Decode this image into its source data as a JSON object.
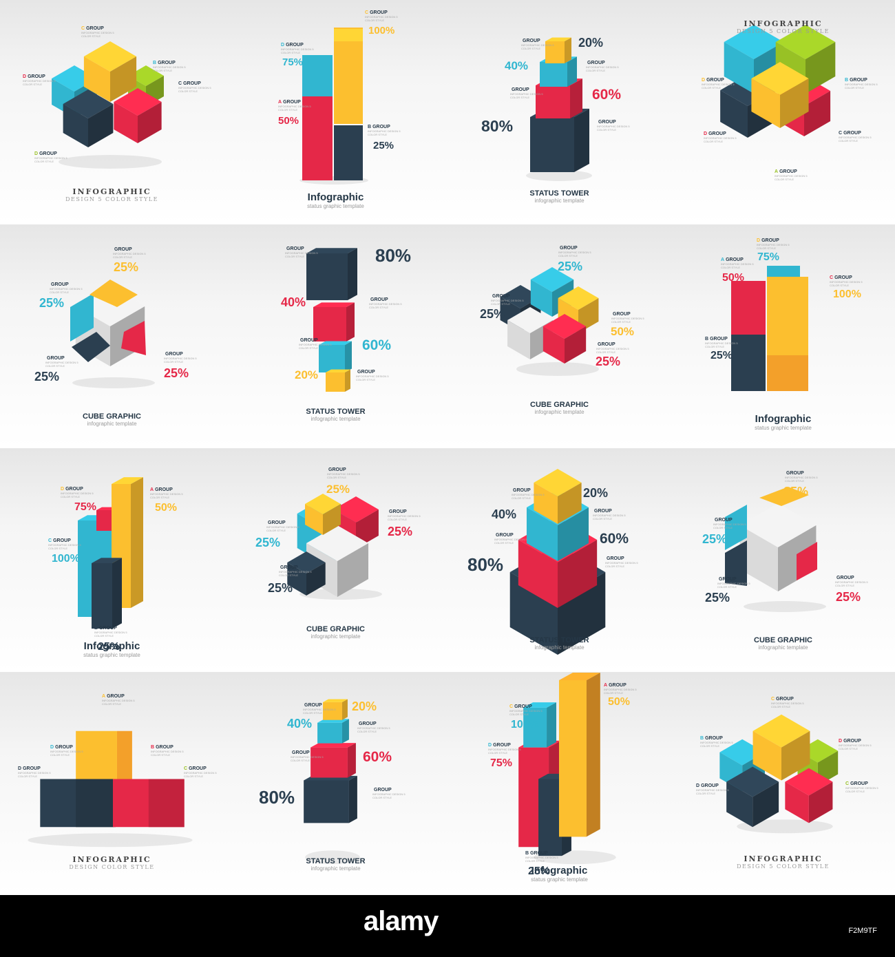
{
  "colors": {
    "navy": "#2b3f50",
    "red": "#e52848",
    "yellow": "#fcbf2f",
    "cyan": "#31b6d0",
    "green": "#98c125",
    "orange": "#f3a02a",
    "grey": "#dadada"
  },
  "desc_text": "INFOGRAPHIC DESIGN 5 COLOR STYLE",
  "footer": {
    "logo": "alamy",
    "stock_id": "",
    "image_id": "F2M9TF"
  },
  "tiles": [
    {
      "title": "INFOGRAPHIC",
      "subtitle": "DESIGN 5 COLOR STYLE",
      "labels": [
        {
          "letter": "C",
          "name": "GROUP"
        },
        {
          "letter": "B",
          "name": "GROUP"
        },
        {
          "letter": "D",
          "name": "GROUP"
        },
        {
          "letter": "C",
          "name": "GROUP"
        },
        {
          "letter": "D",
          "name": "GROUP"
        }
      ],
      "pcts": []
    },
    {
      "title": "Infographic",
      "subtitle": "status graphic template",
      "labels": [
        {
          "letter": "C",
          "name": "GROUP"
        },
        {
          "letter": "D",
          "name": "GROUP"
        },
        {
          "letter": "A",
          "name": "GROUP"
        },
        {
          "letter": "B",
          "name": "GROUP"
        }
      ],
      "pcts": [
        "100%",
        "75%",
        "50%",
        "25%"
      ]
    },
    {
      "title": "STATUS TOWER",
      "subtitle": "infographic template",
      "labels": [
        {
          "letter": "",
          "name": "GROUP"
        },
        {
          "letter": "",
          "name": "GROUP"
        },
        {
          "letter": "",
          "name": "GROUP"
        },
        {
          "letter": "",
          "name": "GROUP"
        }
      ],
      "pcts": [
        "20%",
        "40%",
        "60%",
        "80%"
      ]
    },
    {
      "title": "INFOGRAPHIC",
      "subtitle": "DESIGN 5 COLOR STYLE",
      "labels": [
        {
          "letter": "D",
          "name": "GROUP"
        },
        {
          "letter": "B",
          "name": "GROUP"
        },
        {
          "letter": "D",
          "name": "GROUP"
        },
        {
          "letter": "C",
          "name": "GROUP"
        },
        {
          "letter": "A",
          "name": "GROUP"
        }
      ],
      "pcts": []
    },
    {
      "title": "CUBE GRAPHIC",
      "subtitle": "infographic template",
      "labels": [
        {
          "letter": "",
          "name": "GROUP"
        },
        {
          "letter": "",
          "name": "GROUP"
        },
        {
          "letter": "",
          "name": "GROUP"
        },
        {
          "letter": "",
          "name": "GROUP"
        }
      ],
      "pcts": [
        "25%",
        "25%",
        "25%",
        "25%"
      ]
    },
    {
      "title": "STATUS TOWER",
      "subtitle": "infographic template",
      "labels": [
        {
          "letter": "",
          "name": "GROUP"
        },
        {
          "letter": "",
          "name": "GROUP"
        },
        {
          "letter": "",
          "name": "GROUP"
        },
        {
          "letter": "",
          "name": "GROUP"
        }
      ],
      "pcts": [
        "80%",
        "40%",
        "60%",
        "20%"
      ]
    },
    {
      "title": "CUBE GRAPHIC",
      "subtitle": "infographic template",
      "labels": [
        {
          "letter": "",
          "name": "GROUP"
        },
        {
          "letter": "",
          "name": "GROUP"
        },
        {
          "letter": "",
          "name": "GROUP"
        },
        {
          "letter": "",
          "name": "GROUP"
        }
      ],
      "pcts": [
        "25%",
        "25%",
        "50%",
        "25%"
      ]
    },
    {
      "title": "Infographic",
      "subtitle": "status graphic template",
      "labels": [
        {
          "letter": "D",
          "name": "GROUP"
        },
        {
          "letter": "A",
          "name": "GROUP"
        },
        {
          "letter": "C",
          "name": "GROUP"
        },
        {
          "letter": "B",
          "name": "GROUP"
        }
      ],
      "pcts": [
        "75%",
        "50%",
        "100%",
        "25%"
      ]
    },
    {
      "title": "Infographic",
      "subtitle": "status graphic template",
      "labels": [
        {
          "letter": "D",
          "name": "GROUP"
        },
        {
          "letter": "C",
          "name": "GROUP"
        },
        {
          "letter": "A",
          "name": "GROUP"
        },
        {
          "letter": "B",
          "name": "GROUP"
        }
      ],
      "pcts": [
        "75%",
        "100%",
        "50%",
        "25%"
      ]
    },
    {
      "title": "CUBE GRAPHIC",
      "subtitle": "infographic template",
      "labels": [
        {
          "letter": "",
          "name": "GROUP"
        },
        {
          "letter": "",
          "name": "GROUP"
        },
        {
          "letter": "",
          "name": "GROUP"
        },
        {
          "letter": "",
          "name": "GROUP"
        }
      ],
      "pcts": [
        "25%",
        "25%",
        "25%",
        "25%"
      ]
    },
    {
      "title": "STATUS TOWER",
      "subtitle": "infographic template",
      "labels": [
        {
          "letter": "",
          "name": "GROUP"
        },
        {
          "letter": "",
          "name": "GROUP"
        },
        {
          "letter": "",
          "name": "GROUP"
        },
        {
          "letter": "",
          "name": "GROUP"
        }
      ],
      "pcts": [
        "20%",
        "40%",
        "60%",
        "80%"
      ]
    },
    {
      "title": "CUBE GRAPHIC",
      "subtitle": "infographic template",
      "labels": [
        {
          "letter": "",
          "name": "GROUP"
        },
        {
          "letter": "",
          "name": "GROUP"
        },
        {
          "letter": "",
          "name": "GROUP"
        },
        {
          "letter": "",
          "name": "GROUP"
        }
      ],
      "pcts": [
        "25%",
        "25%",
        "25%",
        "25%"
      ]
    },
    {
      "title": "INFOGRAPHIC",
      "subtitle": "DESIGN COLOR STYLE",
      "labels": [
        {
          "letter": "A",
          "name": "GROUP"
        },
        {
          "letter": "D",
          "name": "GROUP"
        },
        {
          "letter": "B",
          "name": "GROUP"
        },
        {
          "letter": "D",
          "name": "GROUP"
        },
        {
          "letter": "C",
          "name": "GROUP"
        }
      ],
      "pcts": []
    },
    {
      "title": "STATUS TOWER",
      "subtitle": "infographic template",
      "labels": [
        {
          "letter": "",
          "name": "GROUP"
        },
        {
          "letter": "",
          "name": "GROUP"
        },
        {
          "letter": "",
          "name": "GROUP"
        },
        {
          "letter": "",
          "name": "GROUP"
        }
      ],
      "pcts": [
        "20%",
        "40%",
        "60%",
        "80%"
      ]
    },
    {
      "title": "Infographic",
      "subtitle": "status graphic template",
      "labels": [
        {
          "letter": "C",
          "name": "GROUP"
        },
        {
          "letter": "D",
          "name": "GROUP"
        },
        {
          "letter": "A",
          "name": "GROUP"
        },
        {
          "letter": "B",
          "name": "GROUP"
        }
      ],
      "pcts": [
        "100%",
        "75%",
        "50%",
        "25%"
      ]
    },
    {
      "title": "INFOGRAPHIC",
      "subtitle": "DESIGN 5 COLOR STYLE",
      "labels": [
        {
          "letter": "C",
          "name": "GROUP"
        },
        {
          "letter": "B",
          "name": "GROUP"
        },
        {
          "letter": "D",
          "name": "GROUP"
        },
        {
          "letter": "D",
          "name": "GROUP"
        },
        {
          "letter": "C",
          "name": "GROUP"
        }
      ],
      "pcts": []
    }
  ]
}
